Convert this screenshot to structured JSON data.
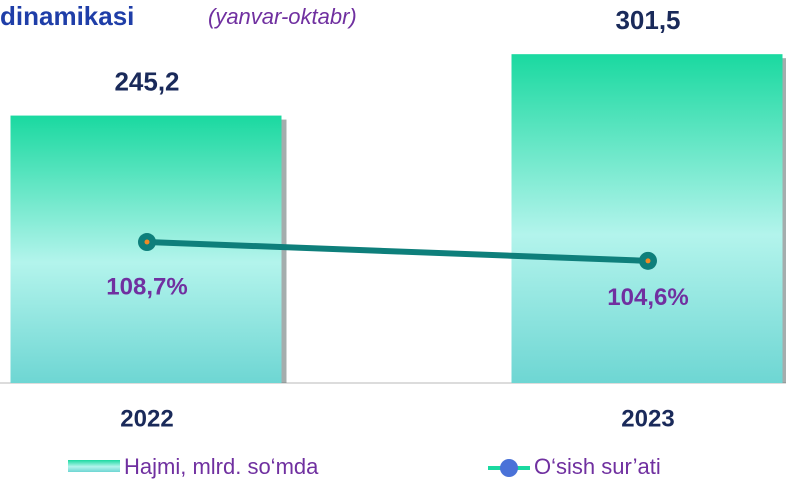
{
  "chart_data": {
    "type": "bar",
    "title": "dinamikasi",
    "subtitle": "(yanvar-oktabr)",
    "categories": [
      "2022",
      "2023"
    ],
    "series": [
      {
        "name": "Hajmi, mlrd. so‘mda",
        "type": "bar",
        "color": "#1ad9a0",
        "values": [
          245.2,
          301.5
        ],
        "value_labels": [
          "245,2",
          "301,5"
        ]
      },
      {
        "name": "O‘sish sur’ati",
        "type": "line",
        "axis": "y2",
        "color": "#0e7f7b",
        "values": [
          108.7,
          104.6
        ],
        "value_labels": [
          "108,7%",
          "104,6%"
        ]
      }
    ],
    "ylim": [
      0,
      320
    ],
    "y2lim": [
      78,
      154
    ]
  }
}
